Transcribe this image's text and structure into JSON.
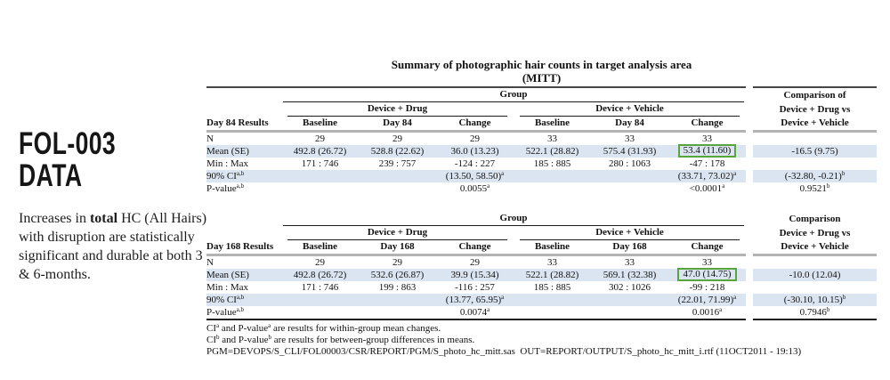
{
  "colors": {
    "row_shade": "#dbe5f1",
    "highlight_box": "#57a53c",
    "rule_dark": "#454545",
    "rule_gray": "#b3b3b3"
  },
  "sidebar": {
    "title_line1": "FOL-003",
    "title_line2": "DATA",
    "description": {
      "pre": "Increases in ",
      "bold": "total",
      "post": " HC (All Hairs) with disruption are statistically significant and durable at both 3 & 6-months."
    }
  },
  "report": {
    "title": "Summary of photographic hair counts in target analysis area",
    "subtitle": "(MITT)"
  },
  "tables": [
    {
      "row_header": "Day 84 Results",
      "group_label": "Group",
      "subgroup_labels": [
        "Device + Drug",
        "Device + Vehicle"
      ],
      "column_headers": [
        "Baseline",
        "Day 84",
        "Change",
        "Baseline",
        "Day 84",
        "Change"
      ],
      "comparison_lines": [
        "Comparison of",
        "Device + Drug vs",
        "Device + Vehicle"
      ],
      "top_rule": true,
      "bottom_rule": false,
      "rows": [
        {
          "label": {
            "t": "N"
          },
          "shaded": false,
          "cells": [
            "29",
            "29",
            "29",
            "33",
            "33",
            "33"
          ],
          "comparison": ""
        },
        {
          "label": {
            "t": "Mean (SE)"
          },
          "shaded": true,
          "cells": [
            "492.8 (26.72)",
            "528.8 (22.62)",
            "36.0 (13.23)",
            "522.1 (28.82)",
            "575.4 (31.93)",
            {
              "t": "53.4 (11.60)",
              "box": true
            }
          ],
          "comparison": "-16.5 (9.75)"
        },
        {
          "label": {
            "t": "Min : Max"
          },
          "shaded": false,
          "cells": [
            "171 : 746",
            "239 : 757",
            "-124 : 227",
            "185 : 885",
            "280 : 1063",
            "-47 : 178"
          ],
          "comparison": ""
        },
        {
          "label": {
            "t": "90% CI",
            "sup": "a,b"
          },
          "shaded": true,
          "cells": [
            "",
            "",
            {
              "t": "(13.50, 58.50)",
              "sup": "a"
            },
            "",
            "",
            {
              "t": "(33.71, 73.02)",
              "sup": "a"
            }
          ],
          "comparison": {
            "t": "(-32.80, -0.21)",
            "sup": "b"
          }
        },
        {
          "label": {
            "t": "P-value",
            "sup": "a,b"
          },
          "shaded": false,
          "cells": [
            "",
            "",
            {
              "t": "0.0055",
              "sup": "a"
            },
            "",
            "",
            {
              "t": "<0.0001",
              "sup": "a"
            }
          ],
          "comparison": {
            "t": "0.9521",
            "sup": "b"
          }
        }
      ]
    },
    {
      "row_header": "Day 168 Results",
      "group_label": "Group",
      "subgroup_labels": [
        "Device + Drug",
        "Device + Vehicle"
      ],
      "column_headers": [
        "Baseline",
        "Day 168",
        "Change",
        "Baseline",
        "Day 168",
        "Change"
      ],
      "comparison_lines": [
        "Comparison",
        "Device + Drug vs",
        "Device + Vehicle"
      ],
      "top_rule": false,
      "bottom_rule": true,
      "rows": [
        {
          "label": {
            "t": "N"
          },
          "shaded": false,
          "cells": [
            "29",
            "29",
            "29",
            "33",
            "33",
            "33"
          ],
          "comparison": ""
        },
        {
          "label": {
            "t": "Mean (SE)"
          },
          "shaded": true,
          "cells": [
            "492.8 (26.72)",
            "532.6 (26.87)",
            "39.9 (15.34)",
            "522.1 (28.82)",
            "569.1 (32.38)",
            {
              "t": "47.0 (14.75)",
              "box": true
            }
          ],
          "comparison": "-10.0 (12.04)"
        },
        {
          "label": {
            "t": "Min : Max"
          },
          "shaded": false,
          "cells": [
            "171 : 746",
            "199 : 863",
            "-116 : 257",
            "185 : 885",
            "302 : 1026",
            "-99 : 218"
          ],
          "comparison": ""
        },
        {
          "label": {
            "t": "90% CI",
            "sup": "a,b"
          },
          "shaded": true,
          "cells": [
            "",
            "",
            {
              "t": "(13.77, 65.95)",
              "sup": "a"
            },
            "",
            "",
            {
              "t": "(22.01, 71.99)",
              "sup": "a"
            }
          ],
          "comparison": {
            "t": "(-30.10, 10.15)",
            "sup": "b"
          }
        },
        {
          "label": {
            "t": "P-value",
            "sup": "a,b"
          },
          "shaded": false,
          "cells": [
            "",
            "",
            {
              "t": "0.0074",
              "sup": "a"
            },
            "",
            "",
            {
              "t": "0.0016",
              "sup": "a"
            }
          ],
          "comparison": {
            "t": "0.7946",
            "sup": "b"
          }
        }
      ]
    }
  ],
  "footnotes": [
    [
      {
        "t": "CI"
      },
      {
        "sup": "a"
      },
      {
        "t": " and P-value"
      },
      {
        "sup": "a"
      },
      {
        "t": " are results for within-group mean changes."
      }
    ],
    [
      {
        "t": "CI"
      },
      {
        "sup": "b"
      },
      {
        "t": " and P-value"
      },
      {
        "sup": "b"
      },
      {
        "t": " are results for between-group differences in means."
      }
    ],
    [
      {
        "t": "PGM=DEVOPS/S_CLI/FOL00003/CSR/REPORT/PGM/S_photo_hc_mitt.sas  OUT=REPORT/OUTPUT/S_photo_hc_mitt_i.rtf (11OCT2011 - 19:13)"
      }
    ]
  ]
}
